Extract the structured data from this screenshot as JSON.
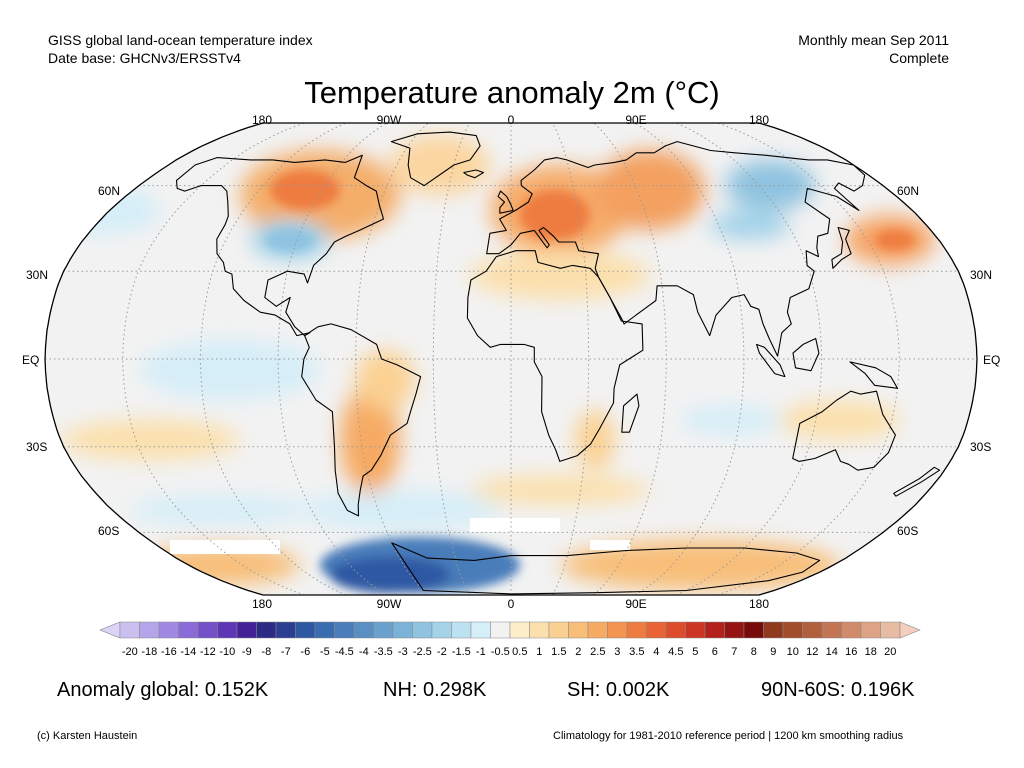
{
  "header": {
    "left_line1": "GISS global land-ocean temperature index",
    "left_line2": "Date base: GHCNv3/ERSSTv4",
    "right_line1": "Monthly mean Sep 2011",
    "right_line2": "Complete"
  },
  "title": "Temperature anomaly 2m (°C)",
  "map": {
    "projection": "Robinson",
    "lon_labels_top": [
      "180",
      "90W",
      "0",
      "90E",
      "180"
    ],
    "lon_labels_bottom": [
      "180",
      "90W",
      "0",
      "90E",
      "180"
    ],
    "lat_labels_left": [
      "60N",
      "30N",
      "EQ",
      "30S",
      "60S"
    ],
    "lat_labels_right": [
      "60N",
      "30N",
      "EQ",
      "30S",
      "60S"
    ]
  },
  "colorbar": {
    "ticks": [
      "-20",
      "-18",
      "-16",
      "-14",
      "-12",
      "-10",
      "-9",
      "-8",
      "-7",
      "-6",
      "-5",
      "-4.5",
      "-4",
      "-3.5",
      "-3",
      "-2.5",
      "-2",
      "-1.5",
      "-1",
      "-0.5",
      "0.5",
      "1",
      "1.5",
      "2",
      "2.5",
      "3",
      "3.5",
      "4",
      "4.5",
      "5",
      "6",
      "7",
      "8",
      "9",
      "10",
      "12",
      "14",
      "16",
      "18",
      "20"
    ],
    "colors": [
      "#c9c0ef",
      "#b4a5ea",
      "#9f88e2",
      "#8a6bd8",
      "#7451c9",
      "#5d37b6",
      "#432298",
      "#2b2a84",
      "#2c3e92",
      "#2f58a3",
      "#3a6cb0",
      "#4a7dba",
      "#5a8fc4",
      "#6aa0cd",
      "#7bb2d7",
      "#8fc3e0",
      "#a4d3e9",
      "#bce2f2",
      "#d6eef8",
      "#f2f2f2",
      "#fbeec9",
      "#fbe0ad",
      "#fbd193",
      "#f8be78",
      "#f6aa63",
      "#f39450",
      "#ee7c40",
      "#e86434",
      "#de4d2b",
      "#cc3423",
      "#b3211c",
      "#961313",
      "#770a0a",
      "#8f3a1d",
      "#a24d2a",
      "#b25f3d",
      "#c27453",
      "#d08b6b",
      "#dca386",
      "#e8bca3"
    ],
    "left_arrow_color": "#dcd4f7",
    "right_arrow_color": "#f4cfc0"
  },
  "stats": {
    "global": "Anomaly global: 0.152K",
    "nh": "NH: 0.298K",
    "sh": "SH: 0.002K",
    "band": "90N-60S: 0.196K"
  },
  "footer": {
    "credit": "(c) Karsten Haustein",
    "note": "Climatology for 1981-2010 reference period | 1200 km smoothing radius"
  }
}
